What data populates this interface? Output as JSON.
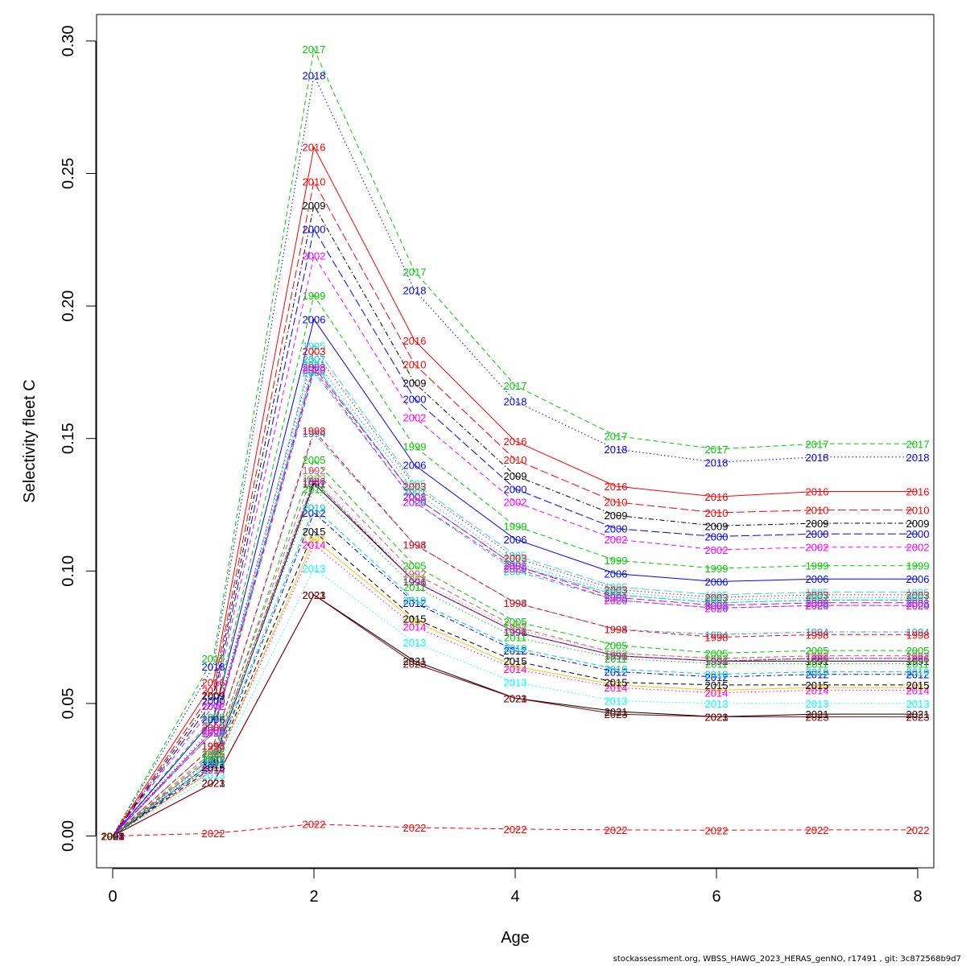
{
  "chart_data": {
    "type": "line",
    "title": "",
    "xlabel": "Age",
    "ylabel": "Selectivity fleet C",
    "x": [
      0,
      1,
      2,
      3,
      4,
      5,
      6,
      7,
      8
    ],
    "xlim": [
      -0.16,
      8.16
    ],
    "ylim": [
      -0.012,
      0.31
    ],
    "xticks": [
      0,
      2,
      4,
      6,
      8
    ],
    "xtick_labels": [
      "0",
      "2",
      "4",
      "6",
      "8"
    ],
    "yticks": [
      0.0,
      0.05,
      0.1,
      0.15,
      0.2,
      0.25,
      0.3
    ],
    "ytick_labels": [
      "0.00",
      "0.05",
      "0.10",
      "0.15",
      "0.20",
      "0.25",
      "0.30"
    ],
    "grid": false,
    "legend": "none",
    "series": [
      {
        "name": "1991",
        "color": "#000000",
        "dash": "solid",
        "values": [
          0,
          0.028,
          0.133,
          0.096,
          0.077,
          0.068,
          0.066,
          0.066,
          0.066
        ]
      },
      {
        "name": "1992",
        "color": "#DF536B",
        "dash": "dashed",
        "values": [
          0,
          0.032,
          0.138,
          0.099,
          0.079,
          0.069,
          0.067,
          0.068,
          0.068
        ]
      },
      {
        "name": "1993",
        "color": "#61D04F",
        "dash": "dotted",
        "values": [
          0,
          0.03,
          0.135,
          0.097,
          0.078,
          0.069,
          0.067,
          0.067,
          0.067
        ]
      },
      {
        "name": "1994",
        "color": "#2297E6",
        "dash": "dotdash",
        "values": [
          0,
          0.034,
          0.152,
          0.11,
          0.088,
          0.078,
          0.076,
          0.077,
          0.077
        ]
      },
      {
        "name": "1995",
        "color": "#28E2E5",
        "dash": "longdash",
        "values": [
          0,
          0.039,
          0.185,
          0.133,
          0.106,
          0.094,
          0.091,
          0.092,
          0.092
        ]
      },
      {
        "name": "1996",
        "color": "#CD0BBC",
        "dash": "twodash",
        "values": [
          0,
          0.03,
          0.134,
          0.096,
          0.077,
          0.068,
          0.066,
          0.067,
          0.067
        ]
      },
      {
        "name": "1997",
        "color": "#F5C710",
        "dash": "solid",
        "values": [
          0,
          0.025,
          0.112,
          0.081,
          0.064,
          0.057,
          0.055,
          0.056,
          0.056
        ]
      },
      {
        "name": "1998",
        "color": "#FF0000",
        "dash": "dashed",
        "values": [
          0,
          0.034,
          0.153,
          0.11,
          0.088,
          0.078,
          0.075,
          0.076,
          0.076
        ]
      },
      {
        "name": "1999",
        "color": "#00CD00",
        "dash": "dashed",
        "values": [
          0,
          0.045,
          0.204,
          0.147,
          0.117,
          0.104,
          0.101,
          0.102,
          0.102
        ]
      },
      {
        "name": "2000",
        "color": "#0000FF",
        "dash": "longdash",
        "values": [
          0,
          0.051,
          0.229,
          0.165,
          0.131,
          0.116,
          0.113,
          0.114,
          0.114
        ]
      },
      {
        "name": "2001",
        "color": "#00CDCD",
        "dash": "twodash",
        "values": [
          0,
          0.04,
          0.178,
          0.128,
          0.102,
          0.091,
          0.088,
          0.089,
          0.089
        ]
      },
      {
        "name": "2002",
        "color": "#FF00FF",
        "dash": "dashed",
        "values": [
          0,
          0.049,
          0.219,
          0.158,
          0.126,
          0.112,
          0.108,
          0.109,
          0.109
        ]
      },
      {
        "name": "2003",
        "color": "#FF0000",
        "dash": "dotted",
        "values": [
          0,
          0.041,
          0.183,
          0.132,
          0.105,
          0.093,
          0.09,
          0.091,
          0.091
        ]
      },
      {
        "name": "2004",
        "color": "#00CDCD",
        "dash": "dotdash",
        "values": [
          0,
          0.039,
          0.175,
          0.126,
          0.1,
          0.089,
          0.086,
          0.087,
          0.087
        ]
      },
      {
        "name": "2005",
        "color": "#00CD00",
        "dash": "dashed",
        "values": [
          0,
          0.031,
          0.142,
          0.102,
          0.081,
          0.072,
          0.069,
          0.07,
          0.07
        ]
      },
      {
        "name": "2006",
        "color": "#0000FF",
        "dash": "solid",
        "values": [
          0,
          0.044,
          0.195,
          0.14,
          0.112,
          0.099,
          0.096,
          0.097,
          0.097
        ]
      },
      {
        "name": "2007",
        "color": "#00CDCD",
        "dash": "dotted",
        "values": [
          0,
          0.04,
          0.18,
          0.13,
          0.103,
          0.092,
          0.089,
          0.09,
          0.09
        ]
      },
      {
        "name": "2008",
        "color": "#CD0BBC",
        "dash": "longdash",
        "values": [
          0,
          0.04,
          0.177,
          0.128,
          0.102,
          0.09,
          0.087,
          0.088,
          0.088
        ]
      },
      {
        "name": "2009",
        "color": "#000000",
        "dash": "dotdash",
        "values": [
          0,
          0.053,
          0.238,
          0.171,
          0.136,
          0.121,
          0.117,
          0.118,
          0.118
        ]
      },
      {
        "name": "2010",
        "color": "#FF0000",
        "dash": "longdash",
        "values": [
          0,
          0.055,
          0.247,
          0.178,
          0.142,
          0.126,
          0.122,
          0.123,
          0.123
        ]
      },
      {
        "name": "2011",
        "color": "#00CD00",
        "dash": "dotted",
        "values": [
          0,
          0.029,
          0.131,
          0.094,
          0.075,
          0.067,
          0.065,
          0.065,
          0.065
        ]
      },
      {
        "name": "2012",
        "color": "#0000FF",
        "dash": "dotdash",
        "values": [
          0,
          0.027,
          0.122,
          0.088,
          0.07,
          0.062,
          0.06,
          0.061,
          0.061
        ]
      },
      {
        "name": "2013",
        "color": "#00FFFF",
        "dash": "dotted",
        "values": [
          0,
          0.023,
          0.101,
          0.073,
          0.058,
          0.051,
          0.05,
          0.05,
          0.05
        ]
      },
      {
        "name": "2014",
        "color": "#FF00FF",
        "dash": "dotted",
        "values": [
          0,
          0.025,
          0.11,
          0.079,
          0.063,
          0.056,
          0.054,
          0.055,
          0.055
        ]
      },
      {
        "name": "2015",
        "color": "#000000",
        "dash": "dashed",
        "values": [
          0,
          0.026,
          0.115,
          0.082,
          0.066,
          0.058,
          0.057,
          0.057,
          0.057
        ]
      },
      {
        "name": "2016",
        "color": "#FF0000",
        "dash": "solid",
        "values": [
          0,
          0.058,
          0.26,
          0.187,
          0.149,
          0.132,
          0.128,
          0.13,
          0.13
        ]
      },
      {
        "name": "2017",
        "color": "#00CD00",
        "dash": "dashed",
        "values": [
          0,
          0.067,
          0.297,
          0.213,
          0.17,
          0.151,
          0.146,
          0.148,
          0.148
        ]
      },
      {
        "name": "2018",
        "color": "#0000FF",
        "dash": "dotted",
        "values": [
          0,
          0.064,
          0.287,
          0.206,
          0.164,
          0.146,
          0.141,
          0.143,
          0.143
        ]
      },
      {
        "name": "2019",
        "color": "#00CDCD",
        "dash": "dashed",
        "values": [
          0,
          0.028,
          0.124,
          0.089,
          0.071,
          0.063,
          0.061,
          0.062,
          0.062
        ]
      },
      {
        "name": "2020",
        "color": "#FF00FF",
        "dash": "dashed",
        "values": [
          0,
          0.039,
          0.176,
          0.126,
          0.101,
          0.089,
          0.086,
          0.087,
          0.087
        ]
      },
      {
        "name": "2021",
        "color": "#000000",
        "dash": "solid",
        "values": [
          0,
          0.02,
          0.091,
          0.066,
          0.052,
          0.047,
          0.045,
          0.046,
          0.046
        ]
      },
      {
        "name": "2022",
        "color": "#FF0000",
        "dash": "dashed",
        "values": [
          0,
          0.001,
          0.0045,
          0.0032,
          0.0026,
          0.0023,
          0.0022,
          0.0023,
          0.0023
        ]
      },
      {
        "name": "2023",
        "color": "#8B0000",
        "dash": "solid",
        "values": [
          0,
          0.02,
          0.091,
          0.065,
          0.052,
          0.046,
          0.045,
          0.045,
          0.045
        ]
      }
    ]
  },
  "footer": {
    "text": "stockassessment.org, WBSS_HAWG_2023_HERAS_genNO, r17491 , git: 3c872568b9d7"
  }
}
